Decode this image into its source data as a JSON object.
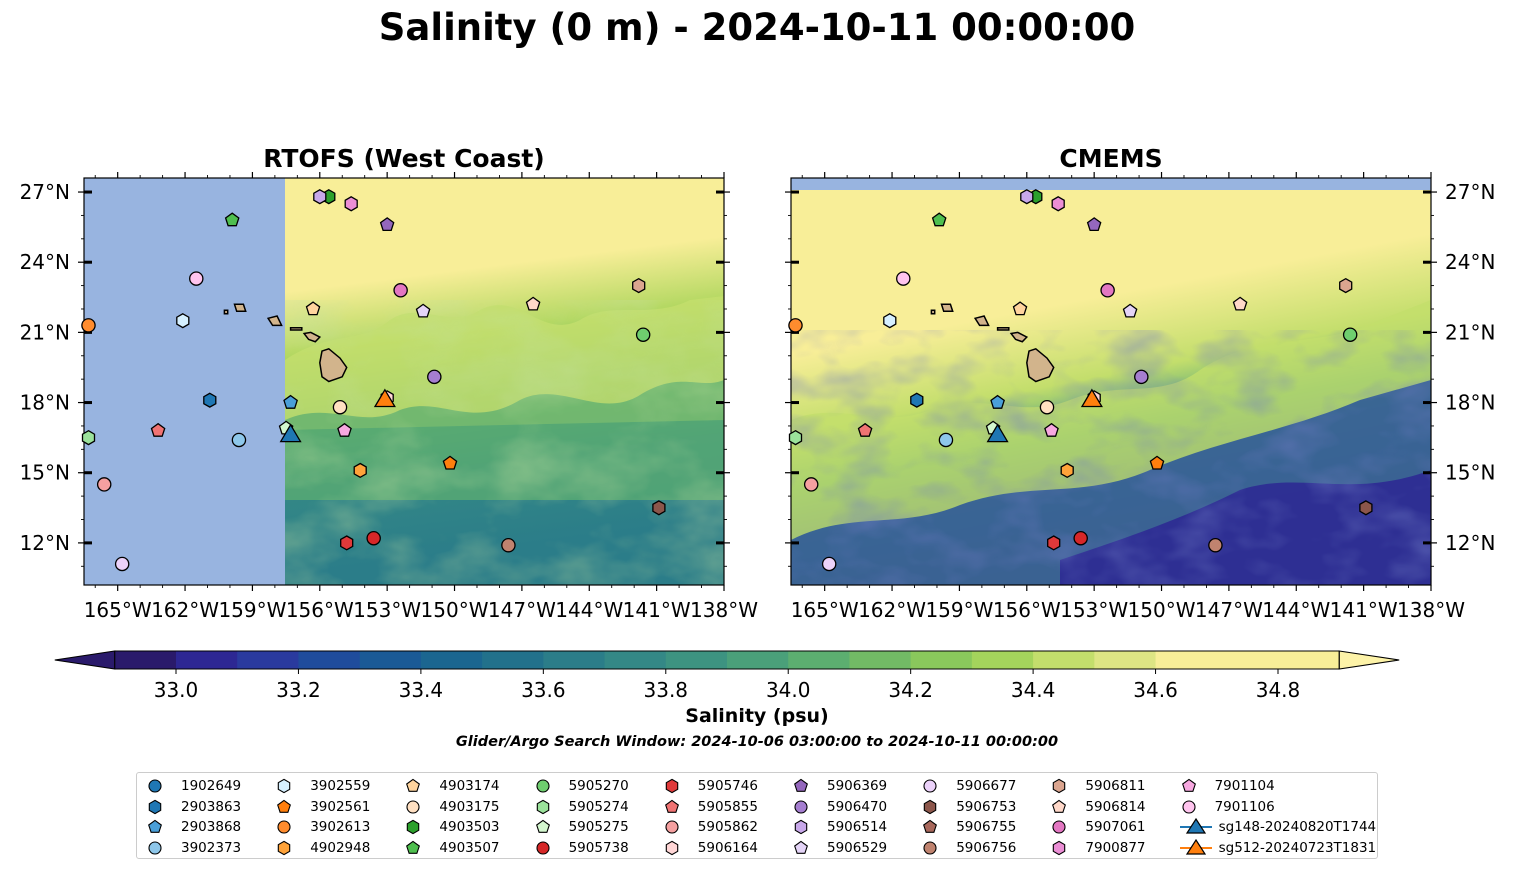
{
  "figure": {
    "title": "Salinity (0 m) - 2024-10-11 00:00:00",
    "search_window": "Glider/Argo Search Window: 2024-10-06 03:00:00 to 2024-10-11 00:00:00"
  },
  "colors": {
    "missing": "#98b4e0",
    "land": "#d2b48c",
    "colormap": [
      "#2a1a6b",
      "#2d2793",
      "#2a3a9e",
      "#1f4c9c",
      "#1a5a96",
      "#1b6690",
      "#22718b",
      "#2b7d89",
      "#348886",
      "#3d9381",
      "#4aa07a",
      "#5cae70",
      "#72bb65",
      "#8ac85c",
      "#a4d45c",
      "#c3de6c",
      "#dde584",
      "#f8ee98"
    ]
  },
  "chart_data": [
    {
      "type": "map",
      "title": "RTOFS (West Coast)",
      "lon_range": [
        -166.5,
        -138
      ],
      "lat_range": [
        10.2,
        27.6
      ],
      "x_ticks": [
        "165°W",
        "162°W",
        "159°W",
        "156°W",
        "153°W",
        "150°W",
        "147°W",
        "144°W",
        "141°W",
        "138°W"
      ],
      "x_tick_values": [
        -165,
        -162,
        -159,
        -156,
        -153,
        -150,
        -147,
        -144,
        -141,
        -138
      ],
      "y_ticks": [
        "27°N",
        "24°N",
        "21°N",
        "18°N",
        "15°N",
        "12°N"
      ],
      "y_tick_values": [
        27,
        24,
        21,
        18,
        15,
        12
      ],
      "y_tick_side": "left",
      "no_data_west_of_lon": -157.6,
      "field": "salinity_surface"
    },
    {
      "type": "map",
      "title": "CMEMS",
      "lon_range": [
        -166.5,
        -138
      ],
      "lat_range": [
        10.2,
        27.6
      ],
      "x_ticks": [
        "165°W",
        "162°W",
        "159°W",
        "156°W",
        "153°W",
        "150°W",
        "147°W",
        "144°W",
        "141°W",
        "138°W"
      ],
      "x_tick_values": [
        -165,
        -162,
        -159,
        -156,
        -153,
        -150,
        -147,
        -144,
        -141,
        -138
      ],
      "y_ticks": [
        "27°N",
        "24°N",
        "21°N",
        "18°N",
        "15°N",
        "12°N"
      ],
      "y_tick_values": [
        27,
        24,
        21,
        18,
        15,
        12
      ],
      "y_tick_side": "right",
      "no_data_north_of_lat": 27.1,
      "field": "salinity_surface"
    }
  ],
  "colorbar": {
    "label": "Salinity (psu)",
    "min": 32.9,
    "max": 34.9,
    "step": 0.1,
    "extend": "both",
    "ticks": [
      "33.0",
      "33.2",
      "33.4",
      "33.6",
      "33.8",
      "34.0",
      "34.2",
      "34.4",
      "34.6",
      "34.8"
    ],
    "tick_values": [
      33.0,
      33.2,
      33.4,
      33.6,
      33.8,
      34.0,
      34.2,
      34.4,
      34.6,
      34.8
    ]
  },
  "floats": [
    {
      "id": "1902649",
      "marker": "circle",
      "color": "#1f77b4",
      "lon": -165.0,
      "lat": 28.5,
      "shown": false
    },
    {
      "id": "2903863",
      "marker": "hexagon",
      "color": "#1f77b4",
      "lon": -160.9,
      "lat": 18.1
    },
    {
      "id": "2903868",
      "marker": "pentagon",
      "color": "#4a9fd8",
      "lon": -157.3,
      "lat": 18.0
    },
    {
      "id": "3902373",
      "marker": "circle",
      "color": "#8ec7ea",
      "lon": -159.6,
      "lat": 16.4
    },
    {
      "id": "3902559",
      "marker": "hexagon",
      "color": "#d6f0ff",
      "lon": -162.1,
      "lat": 21.5
    },
    {
      "id": "3902561",
      "marker": "pentagon",
      "color": "#ff7f0e",
      "lon": -150.2,
      "lat": 15.4
    },
    {
      "id": "3902613",
      "marker": "circle",
      "color": "#ff8c2e",
      "lon": -166.3,
      "lat": 21.3
    },
    {
      "id": "4902948",
      "marker": "hexagon",
      "color": "#ffa33a",
      "lon": -154.2,
      "lat": 15.1
    },
    {
      "id": "4903174",
      "marker": "pentagon",
      "color": "#ffd49e",
      "lon": -156.3,
      "lat": 22.0
    },
    {
      "id": "4903175",
      "marker": "circle",
      "color": "#ffe0c2",
      "lon": -155.1,
      "lat": 17.8
    },
    {
      "id": "4903503",
      "marker": "hexagon",
      "color": "#2ca02c",
      "lon": -155.6,
      "lat": 26.8
    },
    {
      "id": "4903507",
      "marker": "pentagon",
      "color": "#4fbf4f",
      "lon": -159.9,
      "lat": 25.8
    },
    {
      "id": "5905270",
      "marker": "circle",
      "color": "#6fce6f",
      "lon": -141.6,
      "lat": 20.9
    },
    {
      "id": "5905274",
      "marker": "hexagon",
      "color": "#9be29b",
      "lon": -166.3,
      "lat": 16.5
    },
    {
      "id": "5905275",
      "marker": "pentagon",
      "color": "#d4f7cf",
      "lon": -157.5,
      "lat": 16.9
    },
    {
      "id": "5905738",
      "marker": "circle",
      "color": "#d62728",
      "lon": -153.6,
      "lat": 12.2
    },
    {
      "id": "5905746",
      "marker": "hexagon",
      "color": "#e0393a",
      "lon": -154.8,
      "lat": 12.0
    },
    {
      "id": "5905855",
      "marker": "pentagon",
      "color": "#f07373",
      "lon": -163.2,
      "lat": 16.8
    },
    {
      "id": "5905862",
      "marker": "circle",
      "color": "#f5a0a0",
      "lon": -165.6,
      "lat": 14.5
    },
    {
      "id": "5906164",
      "marker": "hexagon",
      "color": "#ffd6d6",
      "lon": -153.0,
      "lat": 18.2
    },
    {
      "id": "5906369",
      "marker": "pentagon",
      "color": "#9467bd",
      "lon": -153.0,
      "lat": 25.6
    },
    {
      "id": "5906470",
      "marker": "circle",
      "color": "#a57ed0",
      "lon": -150.9,
      "lat": 19.1
    },
    {
      "id": "5906514",
      "marker": "hexagon",
      "color": "#c8a8ea",
      "lon": -156.0,
      "lat": 26.8
    },
    {
      "id": "5906529",
      "marker": "pentagon",
      "color": "#e4d4f7",
      "lon": -151.4,
      "lat": 21.9
    },
    {
      "id": "5906677",
      "marker": "circle",
      "color": "#ecd2fa",
      "lon": -164.8,
      "lat": 11.1
    },
    {
      "id": "5906753",
      "marker": "hexagon",
      "color": "#8c564b",
      "lon": -140.9,
      "lat": 13.5
    },
    {
      "id": "5906755",
      "marker": "pentagon",
      "color": "#a8685c",
      "lon": -156.0,
      "lat": 28.5,
      "shown": false
    },
    {
      "id": "5906756",
      "marker": "circle",
      "color": "#c0836f",
      "lon": -147.6,
      "lat": 11.9
    },
    {
      "id": "5906811",
      "marker": "hexagon",
      "color": "#dba58f",
      "lon": -141.8,
      "lat": 23.0
    },
    {
      "id": "5906814",
      "marker": "pentagon",
      "color": "#ffd8c9",
      "lon": -146.5,
      "lat": 22.2
    },
    {
      "id": "5907061",
      "marker": "circle",
      "color": "#e377c2",
      "lon": -152.4,
      "lat": 22.8
    },
    {
      "id": "7900877",
      "marker": "hexagon",
      "color": "#eb8ed5",
      "lon": -154.6,
      "lat": 26.5
    },
    {
      "id": "7901104",
      "marker": "pentagon",
      "color": "#f7a8e0",
      "lon": -154.9,
      "lat": 16.8
    },
    {
      "id": "7901106",
      "marker": "circle",
      "color": "#ffc4ee",
      "lon": -161.5,
      "lat": 23.3
    },
    {
      "id": "sg148-20240820T1744",
      "marker": "triangle",
      "color": "#1f77b4",
      "lon": -157.3,
      "lat": 16.6,
      "glider": true
    },
    {
      "id": "sg512-20240723T1831",
      "marker": "triangle",
      "color": "#ff7f0e",
      "lon": -153.1,
      "lat": 18.1,
      "glider": true
    }
  ]
}
